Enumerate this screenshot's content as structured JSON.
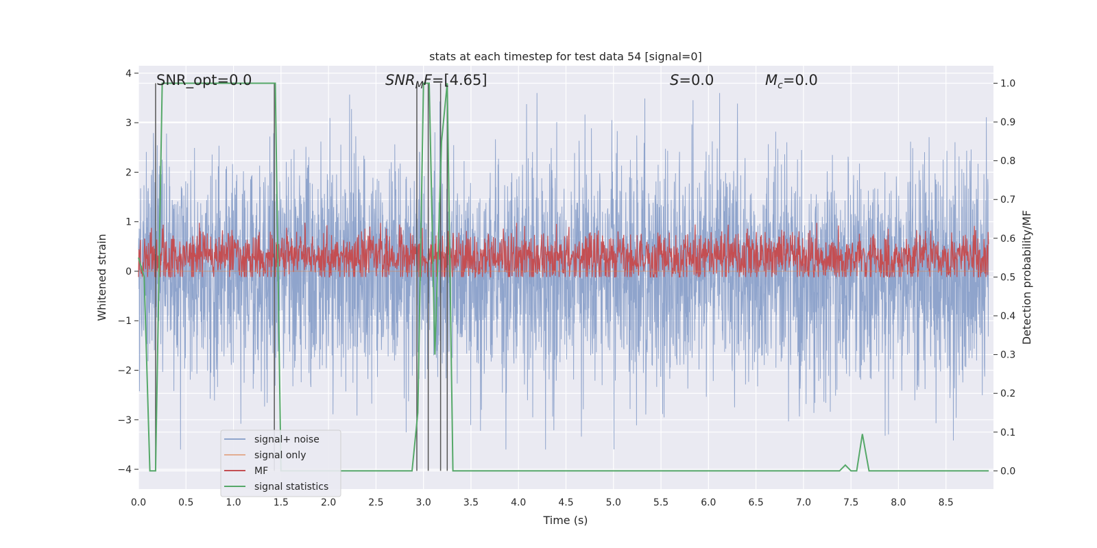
{
  "chart_data": {
    "type": "line",
    "title": "stats at each timestep for test data 54 [signal=0]",
    "xlabel": "Time (s)",
    "ylabel": "Whitened strain",
    "y2label": "Detection probability/MF",
    "xlim": [
      0,
      9.0
    ],
    "ylim": [
      -4.4,
      4.15
    ],
    "y2lim": [
      -0.047,
      1.045
    ],
    "xticks": [
      0.0,
      0.5,
      1.0,
      1.5,
      2.0,
      2.5,
      3.0,
      3.5,
      4.0,
      4.5,
      5.0,
      5.5,
      6.0,
      6.5,
      7.0,
      7.5,
      8.0,
      8.5
    ],
    "xtick_labels": [
      "0.0",
      "0.5",
      "1.0",
      "1.5",
      "2.0",
      "2.5",
      "3.0",
      "3.5",
      "4.0",
      "4.5",
      "5.0",
      "5.5",
      "6.0",
      "6.5",
      "7.0",
      "7.5",
      "8.0",
      "8.5"
    ],
    "yticks": [
      -4,
      -3,
      -2,
      -1,
      0,
      1,
      2,
      3,
      4
    ],
    "ytick_labels": [
      "−4",
      "−3",
      "−2",
      "−1",
      "0",
      "1",
      "2",
      "3",
      "4"
    ],
    "y2ticks": [
      0.0,
      0.1,
      0.2,
      0.3,
      0.4,
      0.5,
      0.6,
      0.7,
      0.8,
      0.9,
      1.0
    ],
    "y2tick_labels": [
      "0.0",
      "0.1",
      "0.2",
      "0.3",
      "0.4",
      "0.5",
      "0.6",
      "0.7",
      "0.8",
      "0.9",
      "1.0"
    ],
    "grid": true,
    "legend_position": "bottom-left",
    "colors": {
      "noise": "#8fa4cc",
      "signal_only": "#dd8452",
      "mf": "#c44e52",
      "stats": "#55a868",
      "vlines": "#555555",
      "plot_bg": "#eaeaf2"
    },
    "annotations": [
      {
        "id": "snr_opt",
        "text": "SNR_opt=0.0",
        "x": 0.19,
        "y": 3.9
      },
      {
        "id": "snr_mf",
        "text": "SNR_MF=[4.65]",
        "x": 2.6,
        "y": 3.9
      },
      {
        "id": "s_stat",
        "text": "S=0.0",
        "x": 5.6,
        "y": 3.9
      },
      {
        "id": "mc",
        "text": "M_c=0.0",
        "x": 6.6,
        "y": 3.9
      }
    ],
    "series": [
      {
        "name": "signal+ noise",
        "axis": "left",
        "kind": "noise",
        "mean": 0.0,
        "std": 1.0,
        "max_abs": 3.6
      },
      {
        "name": "signal only",
        "axis": "left",
        "kind": "flat",
        "values": [
          0.0
        ]
      },
      {
        "name": "MF",
        "axis": "right",
        "kind": "noise",
        "mean": 0.55,
        "std": 0.033,
        "max_min": [
          0.5,
          0.64
        ]
      },
      {
        "name": "signal statistics",
        "axis": "right",
        "x": [
          0.0,
          0.06,
          0.12,
          0.18,
          0.25,
          0.31,
          1.44,
          1.5,
          2.0,
          2.88,
          2.94,
          3.0,
          3.06,
          3.12,
          3.19,
          3.25,
          3.31,
          3.38,
          7.38,
          7.44,
          7.5,
          7.56,
          7.62,
          7.69,
          8.95
        ],
        "y": [
          0.55,
          0.5,
          0.0,
          0.0,
          1.0,
          1.0,
          1.0,
          0.0,
          0.0,
          0.0,
          0.15,
          1.0,
          1.0,
          0.3,
          0.85,
          1.0,
          0.0,
          0.0,
          0.0,
          0.015,
          0.0,
          0.0,
          0.095,
          0.0,
          0.0
        ]
      }
    ],
    "vlines": [
      0.18,
      1.43,
      2.93,
      3.05,
      3.18,
      3.25
    ]
  }
}
